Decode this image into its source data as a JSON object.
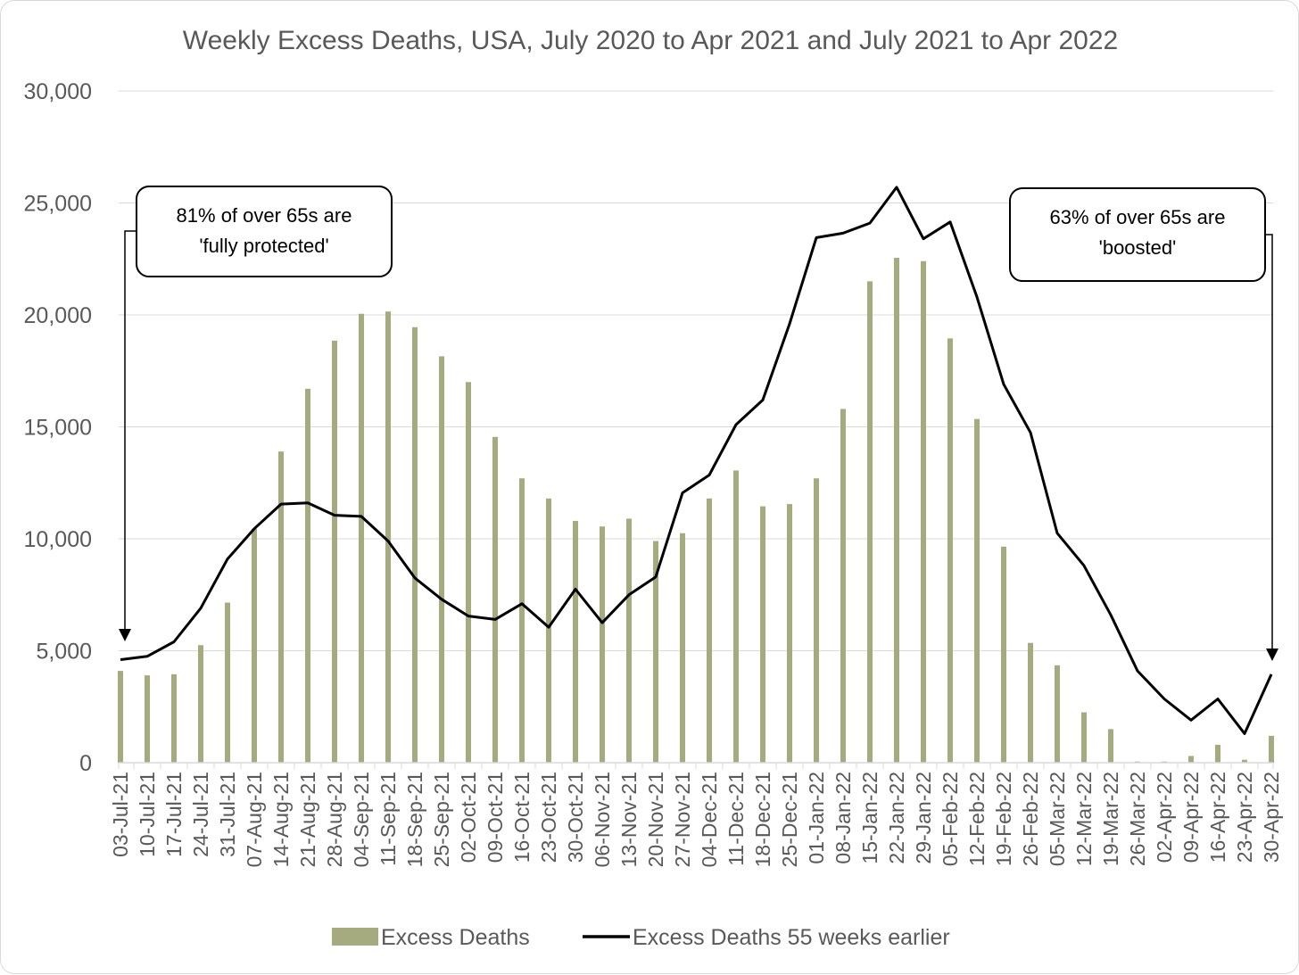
{
  "chart_data": {
    "type": "bar",
    "title": "Weekly Excess Deaths, USA, July 2020 to Apr 2021 and July 2021 to Apr 2022",
    "xlabel": "",
    "ylabel": "",
    "ylim": [
      0,
      30000
    ],
    "yticks": [
      "0",
      "5,000",
      "10,000",
      "15,000",
      "20,000",
      "25,000",
      "30,000"
    ],
    "ytick_values": [
      0,
      5000,
      10000,
      15000,
      20000,
      25000,
      30000
    ],
    "grid": true,
    "legend_position": "bottom",
    "categories": [
      "03-Jul-21",
      "10-Jul-21",
      "17-Jul-21",
      "24-Jul-21",
      "31-Jul-21",
      "07-Aug-21",
      "14-Aug-21",
      "21-Aug-21",
      "28-Aug-21",
      "04-Sep-21",
      "11-Sep-21",
      "18-Sep-21",
      "25-Sep-21",
      "02-Oct-21",
      "09-Oct-21",
      "16-Oct-21",
      "23-Oct-21",
      "30-Oct-21",
      "06-Nov-21",
      "13-Nov-21",
      "20-Nov-21",
      "27-Nov-21",
      "04-Dec-21",
      "11-Dec-21",
      "18-Dec-21",
      "25-Dec-21",
      "01-Jan-22",
      "08-Jan-22",
      "15-Jan-22",
      "22-Jan-22",
      "29-Jan-22",
      "05-Feb-22",
      "12-Feb-22",
      "19-Feb-22",
      "26-Feb-22",
      "05-Mar-22",
      "12-Mar-22",
      "19-Mar-22",
      "26-Mar-22",
      "02-Apr-22",
      "09-Apr-22",
      "16-Apr-22",
      "23-Apr-22",
      "30-Apr-22"
    ],
    "series": [
      {
        "name": "Excess Deaths",
        "type": "bar",
        "color": "#a5aa7f",
        "values": [
          4100,
          3900,
          3950,
          5250,
          7150,
          10450,
          13900,
          16700,
          18850,
          20050,
          20150,
          19450,
          18150,
          17000,
          14550,
          12700,
          11800,
          10800,
          10550,
          10900,
          9900,
          10250,
          11800,
          13050,
          11450,
          11550,
          12700,
          15800,
          21500,
          22550,
          22400,
          18950,
          15350,
          9650,
          5350,
          4350,
          2250,
          1500,
          50,
          50,
          300,
          800,
          130,
          1200
        ]
      },
      {
        "name": "Excess Deaths 55 weeks earlier",
        "type": "line",
        "color": "#000000",
        "values": [
          4600,
          4750,
          5400,
          6900,
          9100,
          10450,
          11550,
          11600,
          11050,
          11000,
          9900,
          8250,
          7300,
          6550,
          6400,
          7100,
          6050,
          7750,
          6250,
          7500,
          8300,
          12050,
          12850,
          15100,
          16200,
          19600,
          23450,
          23650,
          24100,
          25700,
          23400,
          24150,
          20800,
          16900,
          14750,
          10250,
          8800,
          6600,
          4100,
          2850,
          1900,
          2850,
          1300,
          3950
        ]
      }
    ],
    "annotations": [
      {
        "line1": "81% of over 65s are",
        "line2": "'fully protected'"
      },
      {
        "line1": "63% of over 65s are",
        "line2": "'boosted'"
      }
    ]
  }
}
